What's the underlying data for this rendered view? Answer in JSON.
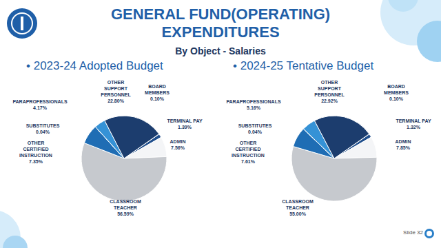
{
  "title": "GENERAL FUND(OPERATING) EXPENDITURES",
  "subtitle": "By Object - Salaries",
  "footer": "Slide 32",
  "chart_data": [
    {
      "type": "pie",
      "title": "• 2023-24 Adopted Budget",
      "categories": [
        "BOARD MEMBERS",
        "TERMINAL PAY",
        "ADMIN",
        "CLASSROOM TEACHER",
        "OTHER CERTIFIED INSTRUCTION",
        "SUBSTITUTES",
        "PARAPROFESSIONALS",
        "OTHER SUPPORT PERSONNEL"
      ],
      "values": [
        0.1,
        1.39,
        7.56,
        56.59,
        7.35,
        0.04,
        4.17,
        22.8
      ],
      "value_labels": [
        "0.10%",
        "1.39%",
        "7.56%",
        "56.59%",
        "7.35%",
        "0.04%",
        "4.17%",
        "22.80%"
      ],
      "colors": [
        "#16335f",
        "#1f4e8c",
        "#f4f5f7",
        "#c6c9ce",
        "#1f6db4",
        "#5aa9e0",
        "#3592d6",
        "#1c3d6e"
      ],
      "data_labels": true
    },
    {
      "type": "pie",
      "title": "• 2024-25 Tentative Budget",
      "categories": [
        "BOARD MEMBERS",
        "TERMINAL PAY",
        "ADMIN",
        "CLASSROOM TEACHER",
        "OTHER CERTIFIED INSTRUCTION",
        "SUBSTITUTES",
        "PARAPROFESSIONALS",
        "OTHER SUPPORT PERSONNEL"
      ],
      "values": [
        0.1,
        1.32,
        7.85,
        55.0,
        7.61,
        0.04,
        5.16,
        22.92
      ],
      "value_labels": [
        "0.10%",
        "1.32%",
        "7.85%",
        "55.00%",
        "7.61%",
        "0.04%",
        "5.16%",
        "22.92%"
      ],
      "colors": [
        "#16335f",
        "#1f4e8c",
        "#f4f5f7",
        "#c6c9ce",
        "#1f6db4",
        "#5aa9e0",
        "#3592d6",
        "#1c3d6e"
      ],
      "data_labels": true
    }
  ]
}
